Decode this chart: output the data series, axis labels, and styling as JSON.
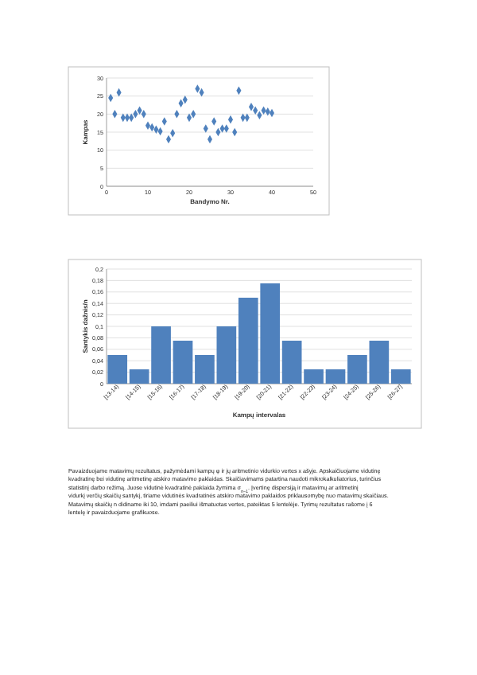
{
  "chart_data": [
    {
      "type": "scatter",
      "xlabel": "Bandymo Nr.",
      "ylabel": "Kampas",
      "x": [
        1,
        2,
        3,
        4,
        5,
        6,
        7,
        8,
        9,
        10,
        11,
        12,
        13,
        14,
        15,
        16,
        17,
        18,
        19,
        20,
        21,
        22,
        23,
        24,
        25,
        26,
        27,
        28,
        29,
        30,
        31,
        32,
        33,
        34,
        35,
        36,
        37,
        38,
        39,
        40
      ],
      "series": [
        {
          "color": "#4f81bd",
          "values": [
            24.5,
            20,
            26,
            19,
            19,
            19,
            20,
            21,
            20,
            16.8,
            16.3,
            15.7,
            15.2,
            18,
            13,
            14.7,
            20,
            23,
            24,
            19,
            20,
            27,
            26,
            16,
            13,
            18,
            15,
            16,
            16,
            18.5,
            15,
            26.5,
            19,
            19,
            22,
            21,
            19.7,
            21,
            20.7,
            20.3
          ]
        }
      ],
      "xlim": [
        0,
        50
      ],
      "xticks": [
        0,
        10,
        20,
        30,
        40,
        50
      ],
      "ylim": [
        0,
        30
      ],
      "yticks": [
        0,
        5,
        10,
        15,
        20,
        25,
        30
      ],
      "grid": "y",
      "marker": "diamond"
    },
    {
      "type": "bar",
      "xlabel": "Kampų intervalas",
      "ylabel": "Santykis dažnis/n",
      "categories": [
        "[13-14)",
        "[14-15)",
        "[15-16)",
        "[16-17)",
        "[17-18)",
        "[18-19)",
        "[19-20)",
        "[20-21)",
        "[21-22)",
        "[22-23)",
        "[23-24)",
        "[24-25)",
        "[25-26)",
        "[26-27]"
      ],
      "series": [
        {
          "color": "#4f81bd",
          "values": [
            0.05,
            0.025,
            0.1,
            0.075,
            0.05,
            0.1,
            0.15,
            0.175,
            0.075,
            0.025,
            0.025,
            0.05,
            0.075,
            0.025
          ]
        }
      ],
      "ylim": [
        0,
        0.2
      ],
      "yticks": [
        {
          "value": 0,
          "label": "0"
        },
        {
          "value": 0.02,
          "label": "0,02"
        },
        {
          "value": 0.04,
          "label": "0,04"
        },
        {
          "value": 0.06,
          "label": "0,06"
        },
        {
          "value": 0.08,
          "label": "0,08"
        },
        {
          "value": 0.1,
          "label": "0,1"
        },
        {
          "value": 0.12,
          "label": "0,12"
        },
        {
          "value": 0.14,
          "label": "0,14"
        },
        {
          "value": 0.16,
          "label": "0,16"
        },
        {
          "value": 0.18,
          "label": "0,18"
        },
        {
          "value": 0.2,
          "label": "0,2"
        }
      ],
      "grid": "y",
      "annotations": [
        "Pavaizduojame matavimų rezultatus, pažymėdami kampų φ ir jų aritmetinio vidurkio vertes x ašyje. Apskaičiuojame vidutinę kvadratinę bei vidutinę aritmetinę atskiro matavimo paklaidas. Skaičiavimams patartina naudoti mikrokalkuliatorius, turinčius statistinį darbo režimą. Juose vidutinė kvadratinė paklaida žymima σ$_{n−1}$. Įvertinę dispersiją ir matavimų ar aritmetinį vidurkį verčių skaičių santykį, tiriame vidutinės kvadratinės atskiro matavimo paklaidos priklausomybę nuo matavimų skaičiaus. Matavimų skaičių n didiname iki 10, imdami paeiliui išmatuotas vertes, pateiktas 5 lentelėje. Tyrimų rezultatus rašome į 6 lentelę ir pavaizduojame grafikuose."
      ]
    }
  ]
}
